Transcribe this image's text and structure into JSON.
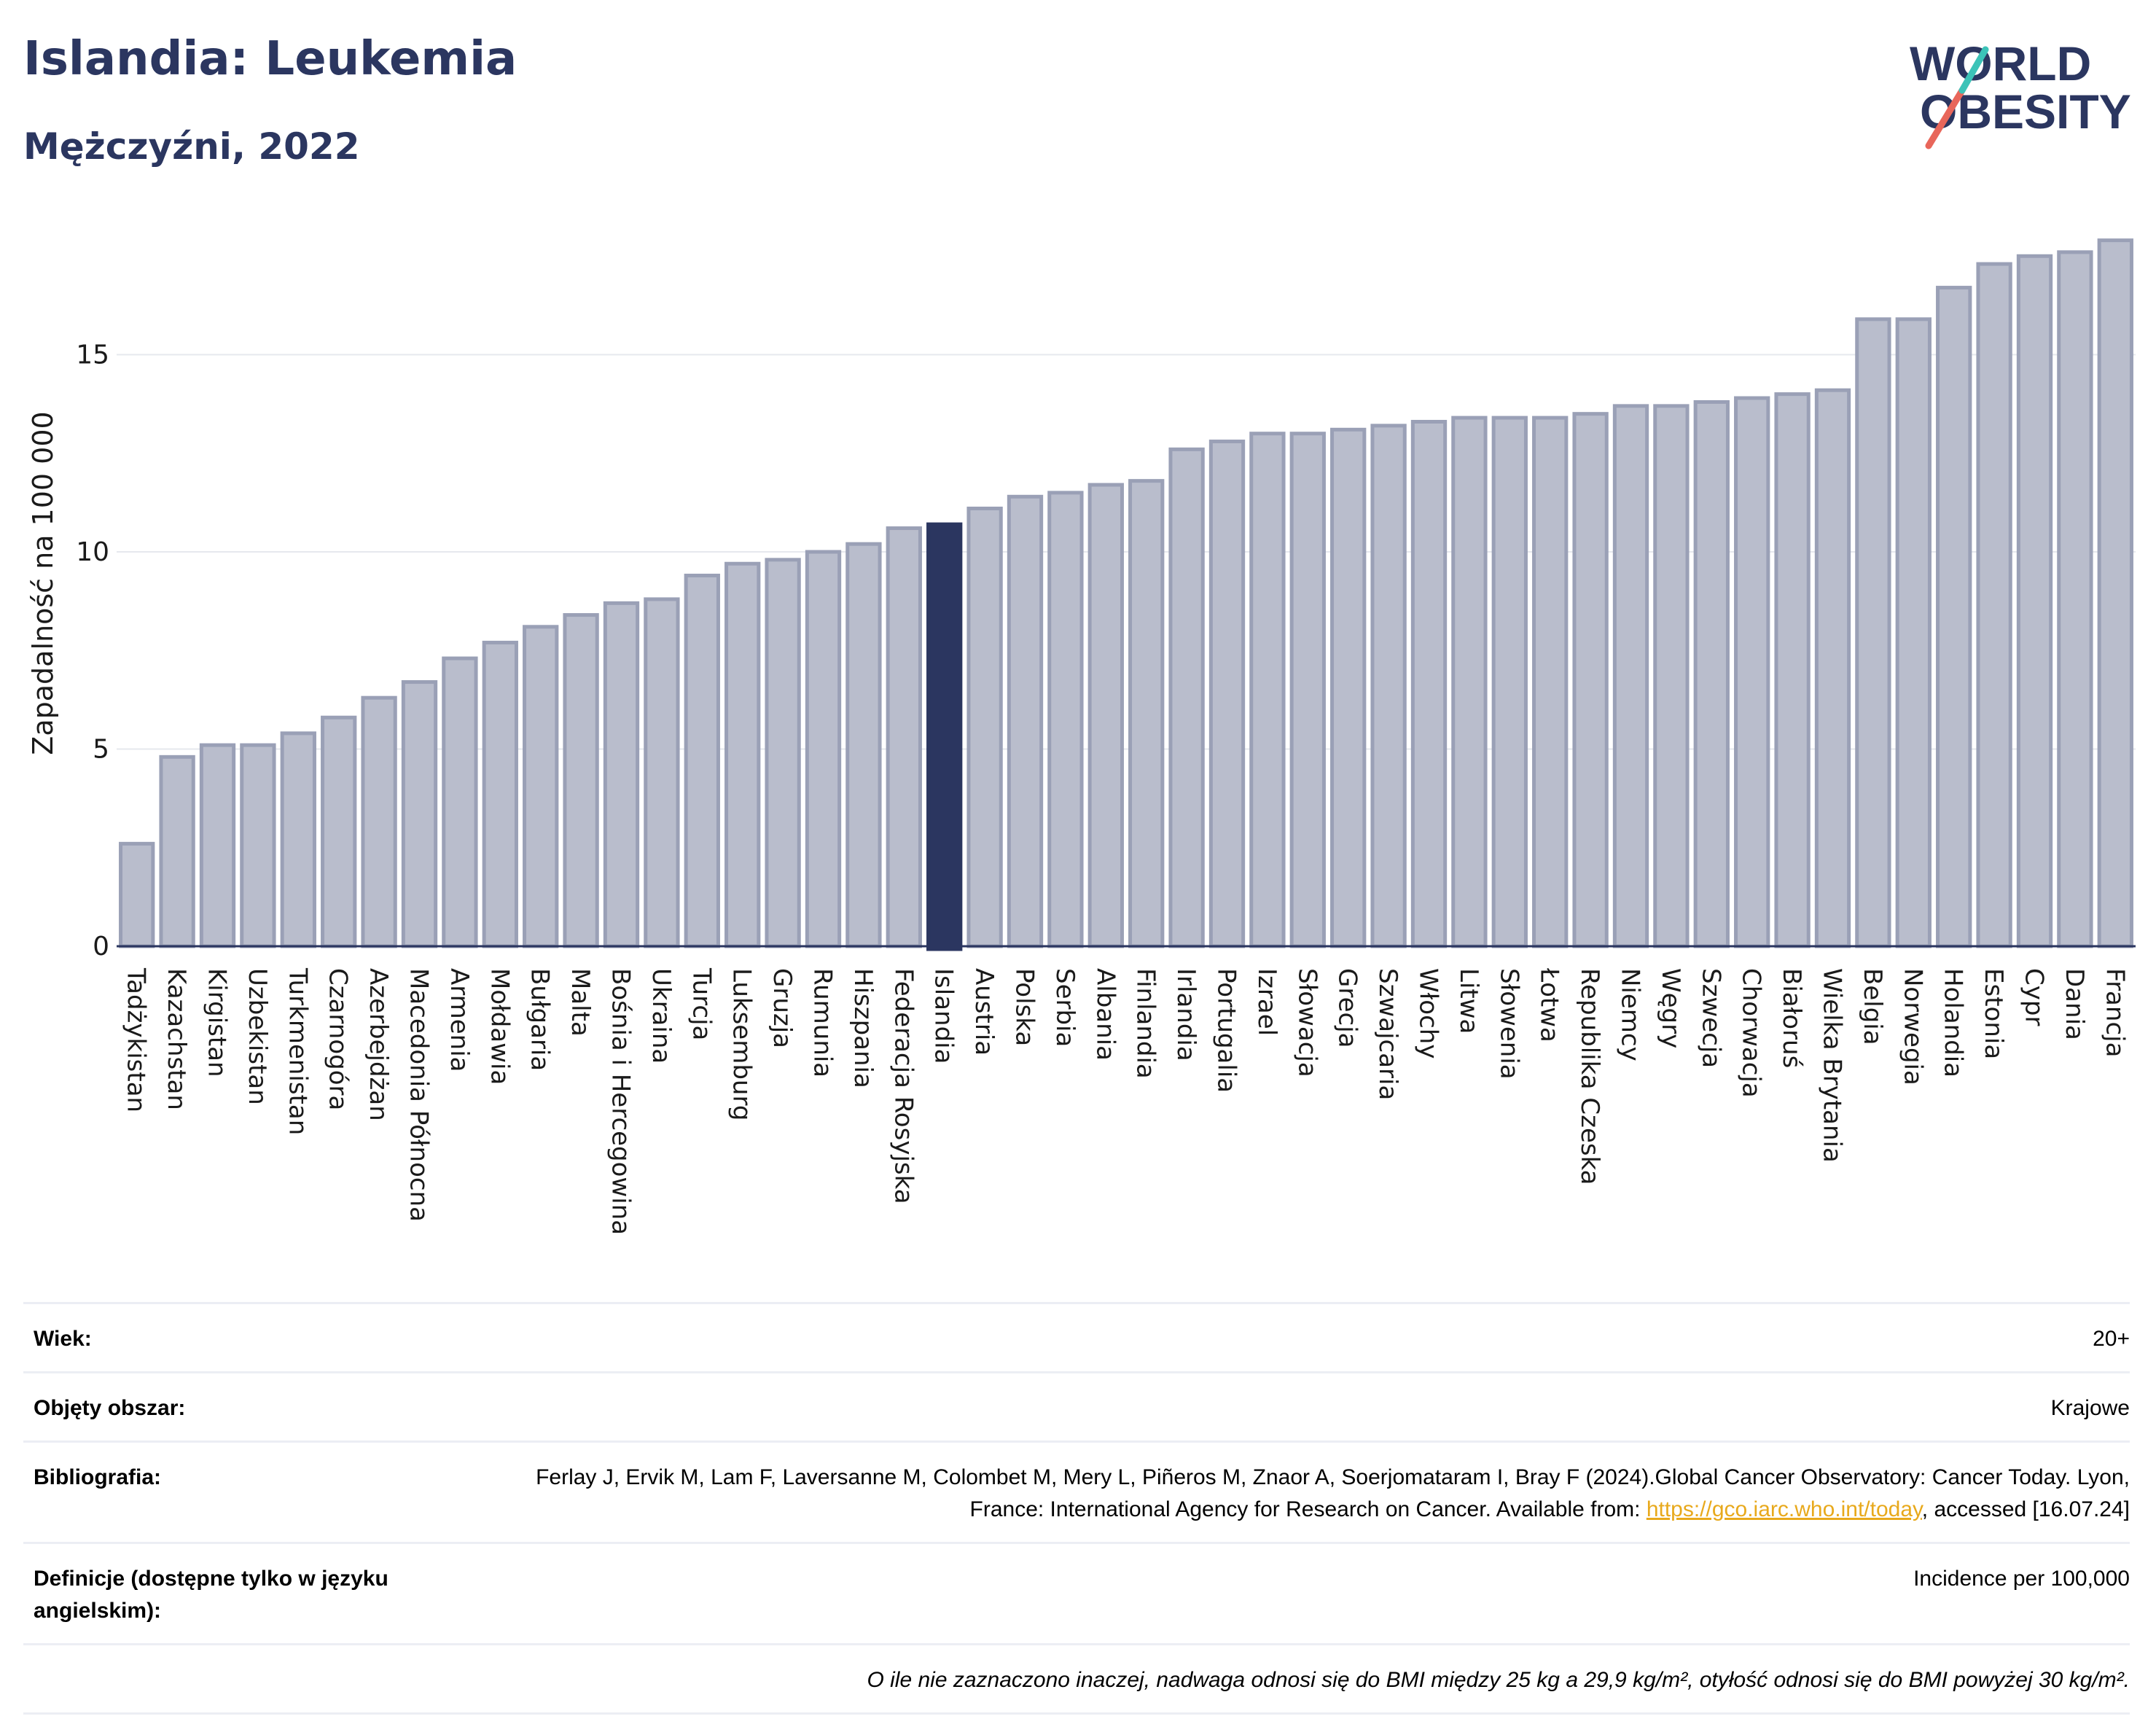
{
  "header": {
    "title": "Islandia: Leukemia",
    "subtitle": "Mężczyźni, 2022"
  },
  "logo": {
    "line1": "WORLD",
    "line2": "OBESITY",
    "icon": "world-obesity-logo"
  },
  "colors": {
    "bar": "#b9bdcc",
    "bar_stroke": "#9aa0b6",
    "highlight": "#2b3660",
    "grid": "#e6e8ee",
    "axis": "#2b3660"
  },
  "chart_data": {
    "type": "bar",
    "ylabel": "Zapadalność na 100 000",
    "ylim": [
      0,
      18.3
    ],
    "yticks": [
      0,
      5,
      10,
      15
    ],
    "grid": true,
    "highlight": "Islandia",
    "categories": [
      "Tadżykistan",
      "Kazachstan",
      "Kirgistan",
      "Uzbekistan",
      "Turkmenistan",
      "Czarnogóra",
      "Azerbejdżan",
      "Macedonia Północna",
      "Armenia",
      "Mołdawia",
      "Bułgaria",
      "Malta",
      "Bośnia i Hercegowina",
      "Ukraina",
      "Turcja",
      "Luksemburg",
      "Gruzja",
      "Rumunia",
      "Hiszpania",
      "Federacja Rosyjska",
      "Islandia",
      "Austria",
      "Polska",
      "Serbia",
      "Albania",
      "Finlandia",
      "Irlandia",
      "Portugalia",
      "Izrael",
      "Słowacja",
      "Grecja",
      "Szwajcaria",
      "Włochy",
      "Litwa",
      "Słowenia",
      "Łotwa",
      "Republika Czeska",
      "Niemcy",
      "Węgry",
      "Szwecja",
      "Chorwacja",
      "Białoruś",
      "Wielka Brytania",
      "Belgia",
      "Norwegia",
      "Holandia",
      "Estonia",
      "Cypr",
      "Dania",
      "Francja"
    ],
    "values": [
      2.6,
      4.8,
      5.1,
      5.1,
      5.4,
      5.8,
      6.3,
      6.7,
      7.3,
      7.7,
      8.1,
      8.4,
      8.7,
      8.8,
      9.4,
      9.7,
      9.8,
      10.0,
      10.2,
      10.6,
      10.7,
      11.1,
      11.4,
      11.5,
      11.7,
      11.8,
      12.6,
      12.8,
      13.0,
      13.0,
      13.1,
      13.2,
      13.3,
      13.4,
      13.4,
      13.4,
      13.5,
      13.7,
      13.7,
      13.8,
      13.9,
      14.0,
      14.1,
      15.9,
      15.9,
      16.7,
      17.3,
      17.5,
      17.6,
      17.9
    ]
  },
  "meta": {
    "age_label": "Wiek:",
    "age_value": "20+",
    "coverage_label": "Objęty obszar:",
    "coverage_value": "Krajowe",
    "bib_label": "Bibliografia:",
    "bib_text_1": "Ferlay J, Ervik M, Lam F, Laversanne M, Colombet M, Mery L, Piñeros M, Znaor A, Soerjomataram I, Bray F (2024).Global Cancer Observatory: Cancer Today. Lyon, France: International Agency for Research on Cancer. Available from: ",
    "bib_link": "https://gco.iarc.who.int/today",
    "bib_text_2": ", accessed [16.07.24]",
    "def_label": "Definicje (dostępne tylko w języku angielskim):",
    "def_value": "Incidence per 100,000",
    "note": "O ile nie zaznaczono inaczej, nadwaga odnosi się do BMI między 25 kg a 29,9 kg/m², otyłość odnosi się do BMI powyżej 30 kg/m²."
  }
}
